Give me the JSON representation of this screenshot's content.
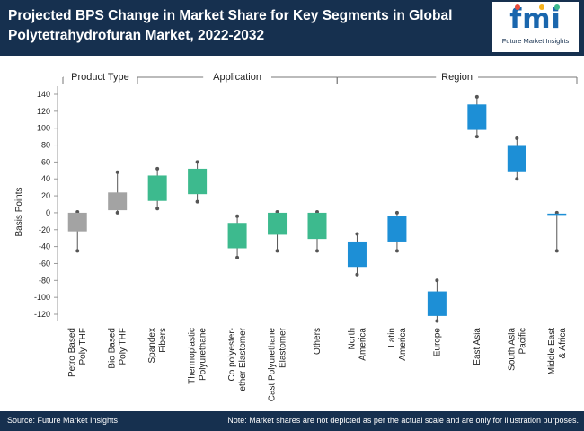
{
  "header": {
    "title": "Projected BPS Change in Market Share for Key Segments in Global Polytetrahydrofuran Market, 2022-2032",
    "logo_text": "fmi",
    "logo_sub": "Future Market Insights"
  },
  "footer": {
    "source": "Source: Future Market Insights",
    "note": "Note: Market shares are not depicted as per the actual scale and are only for illustration purposes."
  },
  "colors": {
    "product_type": "#a3a3a3",
    "application": "#3dba8e",
    "region": "#1d8fd6",
    "header": "#16304f"
  },
  "chart_data": {
    "type": "candlestick",
    "title": "Projected BPS Change in Market Share for Key Segments in Global Polytetrahydrofuran Market, 2022-2032",
    "ylabel": "Basis Points",
    "ylim": [
      -120,
      140
    ],
    "yticks": [
      -120,
      -100,
      -80,
      -60,
      -40,
      -20,
      0,
      20,
      40,
      60,
      80,
      100,
      120,
      140
    ],
    "groups": [
      {
        "name": "Product Type",
        "range": [
          0,
          1
        ]
      },
      {
        "name": "Application",
        "range": [
          2,
          6
        ]
      },
      {
        "name": "Region",
        "range": [
          7,
          12
        ]
      }
    ],
    "series": [
      {
        "label": "Petro Based Poly THF",
        "group": "Product Type",
        "low": -45,
        "high": 1,
        "box": [
          -22,
          0
        ]
      },
      {
        "label": "Bio Based Poly THF",
        "group": "Product Type",
        "low": 0,
        "high": 48,
        "box": [
          3,
          24
        ]
      },
      {
        "label": "Spandex Fibers",
        "group": "Application",
        "low": 5,
        "high": 52,
        "box": [
          14,
          44
        ]
      },
      {
        "label": "Thermoplastic Polyurethane",
        "group": "Application",
        "low": 13,
        "high": 60,
        "box": [
          22,
          52
        ]
      },
      {
        "label": "Co polyester- ether Elastomer",
        "group": "Application",
        "low": -53,
        "high": -4,
        "box": [
          -42,
          -12
        ]
      },
      {
        "label": "Cast Polyurethane Elastomer",
        "group": "Application",
        "low": -45,
        "high": 1,
        "box": [
          -26,
          0
        ]
      },
      {
        "label": "Others",
        "group": "Application",
        "low": -45,
        "high": 1,
        "box": [
          -31,
          0
        ]
      },
      {
        "label": "North America",
        "group": "Region",
        "low": -73,
        "high": -25,
        "box": [
          -64,
          -34
        ]
      },
      {
        "label": "Latin America",
        "group": "Region",
        "low": -45,
        "high": 0,
        "box": [
          -34,
          -4
        ]
      },
      {
        "label": "Europe",
        "group": "Region",
        "low": -128,
        "high": -80,
        "box": [
          -122,
          -93
        ]
      },
      {
        "label": "East Asia",
        "group": "Region",
        "low": 90,
        "high": 137,
        "box": [
          98,
          128
        ]
      },
      {
        "label": "South Asia Pacific",
        "group": "Region",
        "low": 40,
        "high": 88,
        "box": [
          49,
          79
        ]
      },
      {
        "label": "Middle East & Africa",
        "group": "Region",
        "low": -45,
        "high": 0,
        "box": [
          -2,
          -1
        ]
      }
    ]
  }
}
